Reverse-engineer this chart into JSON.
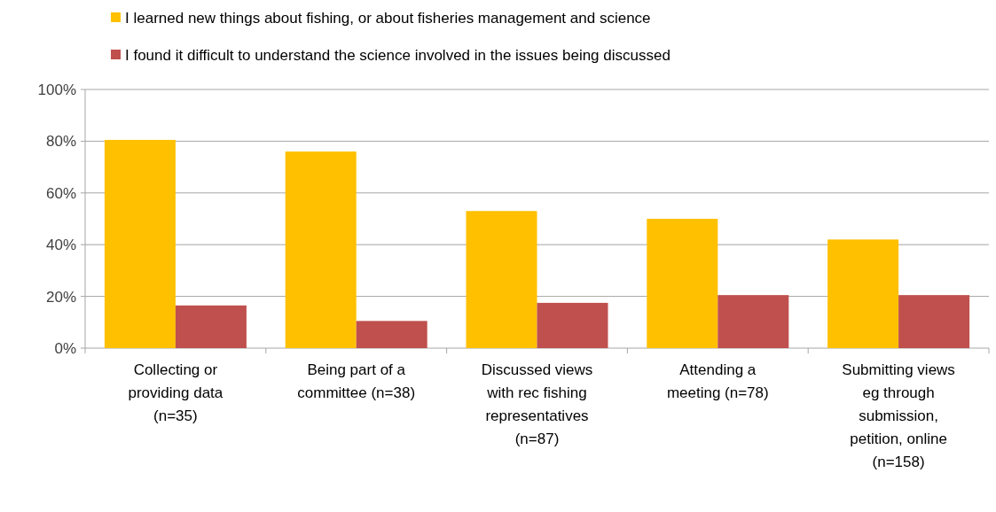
{
  "chart_data": {
    "type": "bar",
    "categories": [
      "Collecting or\nproviding data\n(n=35)",
      "Being part of a\ncommittee (n=38)",
      "Discussed views\nwith rec fishing\nrepresentatives\n(n=87)",
      "Attending a\nmeeting (n=78)",
      "Submitting views\neg through\nsubmission,\npetition, online\n(n=158)"
    ],
    "series": [
      {
        "name": "I learned new things about fishing, or about fisheries management and science",
        "color": "#ffc000",
        "values": [
          80.5,
          76,
          53,
          50,
          42
        ]
      },
      {
        "name": "I found it difficult to understand the science involved in the issues being discussed",
        "color": "#c0504d",
        "values": [
          16.5,
          10.5,
          17.5,
          20.5,
          20.5
        ]
      }
    ],
    "ylim": [
      0,
      100
    ],
    "yticks": [
      {
        "value": 0,
        "label": "0%"
      },
      {
        "value": 20,
        "label": "20%"
      },
      {
        "value": 40,
        "label": "40%"
      },
      {
        "value": 60,
        "label": "60%"
      },
      {
        "value": 80,
        "label": "80%"
      },
      {
        "value": 100,
        "label": "100%"
      }
    ],
    "grid": "y",
    "legend": "top left"
  }
}
